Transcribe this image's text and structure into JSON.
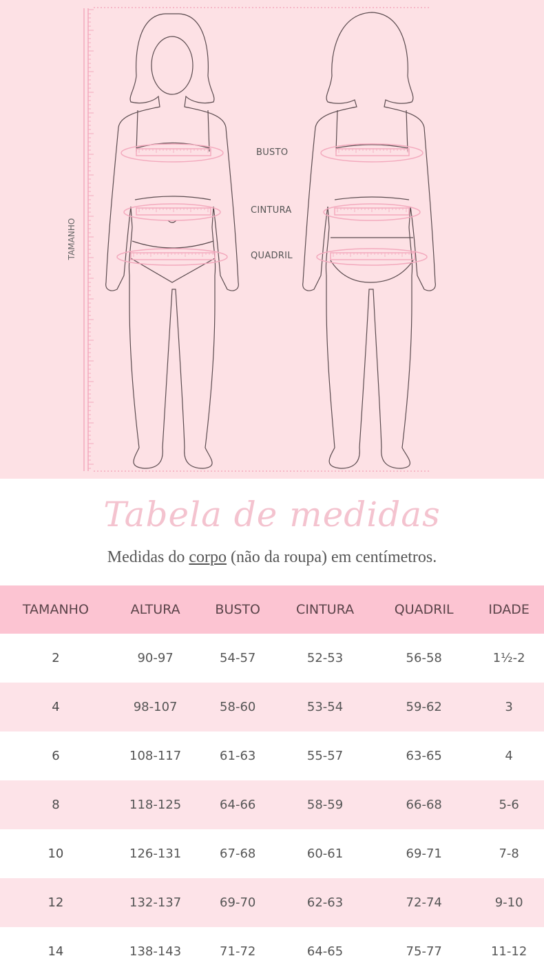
{
  "illustration": {
    "labels": {
      "busto": "BUSTO",
      "cintura": "CINTURA",
      "quadril": "QUADRIL",
      "tamanho": "TAMANHO"
    },
    "colors": {
      "background": "#fde1e5",
      "tape": "#f3a9bd",
      "outline": "#5a4a4e"
    }
  },
  "title": "Tabela de medidas",
  "subtitle": {
    "before": "Medidas do ",
    "underlined": "corpo",
    "after": " (não da roupa) em centímetros."
  },
  "table": {
    "headers": [
      "TAMANHO",
      "ALTURA",
      "BUSTO",
      "CINTURA",
      "QUADRIL",
      "IDADE"
    ],
    "rows": [
      [
        "2",
        "90-97",
        "54-57",
        "52-53",
        "56-58",
        "1½-2"
      ],
      [
        "4",
        "98-107",
        "58-60",
        "53-54",
        "59-62",
        "3"
      ],
      [
        "6",
        "108-117",
        "61-63",
        "55-57",
        "63-65",
        "4"
      ],
      [
        "8",
        "118-125",
        "64-66",
        "58-59",
        "66-68",
        "5-6"
      ],
      [
        "10",
        "126-131",
        "67-68",
        "60-61",
        "69-71",
        "7-8"
      ],
      [
        "12",
        "132-137",
        "69-70",
        "62-63",
        "72-74",
        "9-10"
      ],
      [
        "14",
        "138-143",
        "71-72",
        "64-65",
        "75-77",
        "11-12"
      ]
    ],
    "colors": {
      "header": "#fcc4d2",
      "alt_row": "#fde3e8"
    }
  }
}
